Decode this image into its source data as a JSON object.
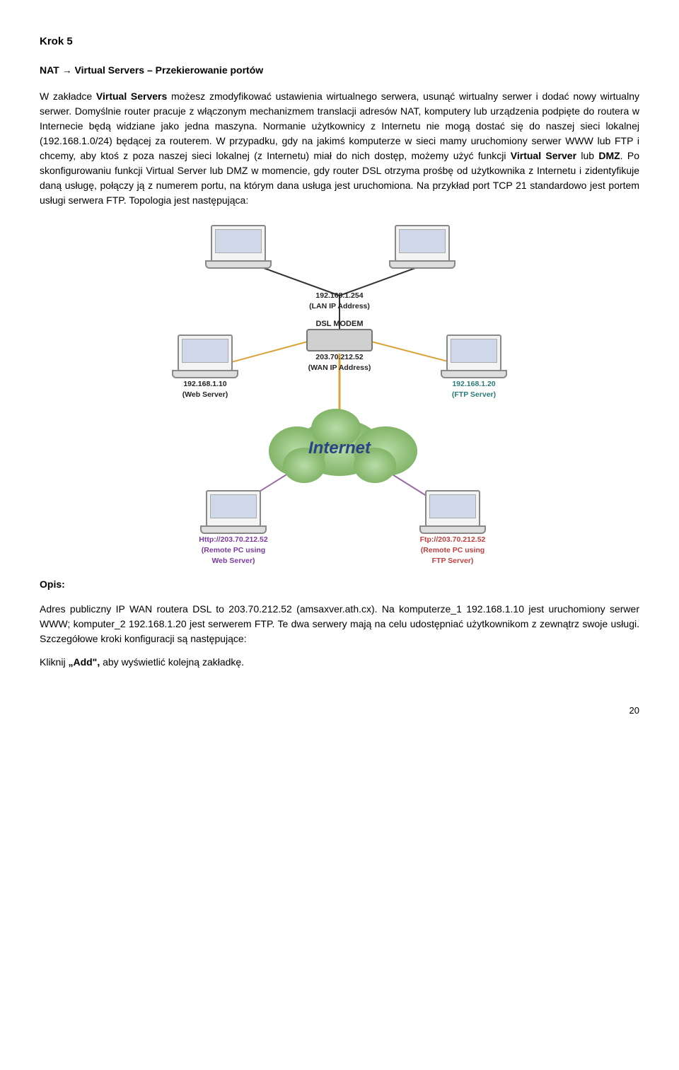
{
  "step": {
    "heading": "Krok 5",
    "subheading_prefix": "NAT ",
    "subheading_arrow": "→",
    "subheading_suffix": " Virtual Servers – Przekierowanie portów"
  },
  "para1_parts": [
    "W zakładce ",
    {
      "b": "Virtual Servers"
    },
    " możesz zmodyfikować ustawienia wirtualnego serwera, usunąć wirtualny serwer i dodać nowy wirtualny serwer. Domyślnie router pracuje z włączonym mechanizmem translacji adresów NAT, komputery lub urządzenia podpięte do routera w Internecie będą widziane jako jedna maszyna. Normanie użytkownicy z Internetu nie mogą dostać się do naszej sieci lokalnej (192.168.1.0/24) będącej za routerem. W przypadku, gdy na jakimś komputerze w sieci mamy uruchomiony serwer WWW lub FTP i chcemy, aby ktoś z poza naszej sieci lokalnej (z Internetu) miał do nich dostęp, możemy użyć funkcji ",
    {
      "b": "Virtual Server"
    },
    " lub ",
    {
      "b": "DMZ"
    },
    ". Po skonfigurowaniu funkcji Virtual Server lub DMZ w momencie, gdy router DSL otrzyma prośbę od użytkownika z Internetu i zidentyfikuje daną usługę, połączy ją z numerem portu, na którym dana usługa jest uruchomiona. Na przykład port TCP 21 standardowo jest portem usługi serwera FTP. Topologia jest następująca:"
  ],
  "diagram": {
    "lan_ip": {
      "ip": "192.168.1.254",
      "label": "(LAN IP Address)"
    },
    "dsl_modem": {
      "title": "DSL MODEM",
      "ip": "203.70.212.52",
      "label": "(WAN IP Address)"
    },
    "web_server": {
      "ip": "192.168.1.10",
      "label": "(Web Server)"
    },
    "ftp_server": {
      "ip": "192.168.1.20",
      "label": "(FTP Server)"
    },
    "remote_web": {
      "url": "Http://203.70.212.52",
      "l1": "(Remote PC using",
      "l2": "Web Server)"
    },
    "remote_ftp": {
      "url": "Ftp://203.70.212.52",
      "l1": "(Remote PC using",
      "l2": "FTP Server)"
    },
    "cloud_label": "Internet"
  },
  "opis": {
    "heading": "Opis:",
    "para_parts": [
      "Adres publiczny IP WAN routera DSL to 203.70.212.52 (amsaxver.ath.cx). Na komputerze_1 192.168.1.10 jest uruchomiony serwer WWW; komputer_2 192.168.1.20 jest serwerem FTP. Te dwa serwery mają na celu udostępniać użytkownikom z zewnątrz swoje usługi. Szczegółowe kroki konfiguracji są następujące:"
    ],
    "click_parts": [
      "Kliknij ",
      {
        "b": "„Add\","
      },
      " aby wyświetlić kolejną zakładkę."
    ]
  },
  "page_number": "20",
  "colors": {
    "line_dark": "#333333",
    "line_orange": "#d9a33a",
    "line_purple": "#9a6aa8"
  }
}
